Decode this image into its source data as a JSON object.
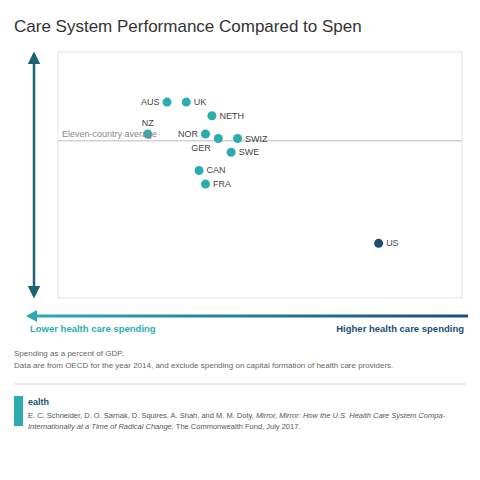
{
  "chart_data": {
    "type": "scatter",
    "title": "Care System Performance Compared to Spen",
    "categories": [
      "AUS",
      "UK",
      "NETH",
      "NZ",
      "NOR",
      "GER",
      "SWIZ",
      "SWE",
      "CAN",
      "FRA",
      "US"
    ],
    "x": [
      5.2,
      5.5,
      5.9,
      4.9,
      5.8,
      6.0,
      6.3,
      6.2,
      5.7,
      5.8,
      8.5
    ],
    "values": [
      7.5,
      7.5,
      7.2,
      6.8,
      6.8,
      6.7,
      6.7,
      6.4,
      6.0,
      5.7,
      4.4
    ],
    "colors": [
      "#2badb0",
      "#2badb0",
      "#2badb0",
      "#2badb0",
      "#2badb0",
      "#2badb0",
      "#2badb0",
      "#2badb0",
      "#2badb0",
      "#2badb0",
      "#1a4f72"
    ],
    "xlim": [
      3.5,
      9.8
    ],
    "ylim": [
      3.2,
      8.6
    ],
    "tick_labels": false,
    "grid": false,
    "average": {
      "value": 6.65,
      "label": "Eleven-country average"
    },
    "xlabel_left": "Lower health care spending",
    "xlabel_right": "Higher health care spending",
    "notes": [
      "Spending as a percent of GDP.",
      "Data are from OECD for the year 2014, and exclude spending on capital formation of health care providers."
    ],
    "logo_text": "ealth",
    "citation": [
      [
        "E. C. Schneider, D. O. Sarnak, D. Squires, A. Shah, and M. M. Doty, ",
        "Mirror, Mirror: How the U.S. Health Care System Compa-"
      ],
      [
        "Internationally at a Time of Radical Change,",
        " The Commonwealth Fund, July 2017."
      ]
    ]
  }
}
